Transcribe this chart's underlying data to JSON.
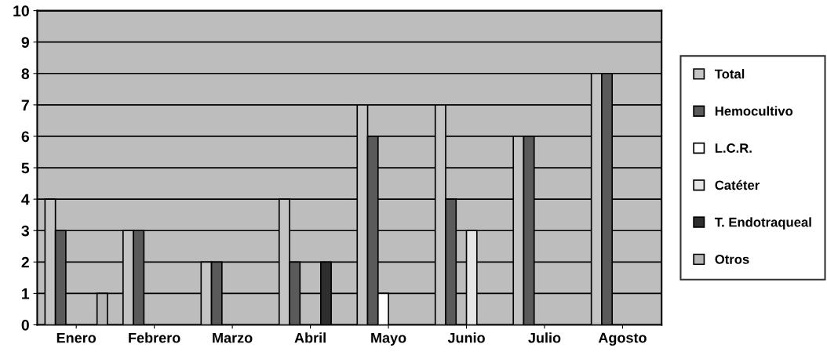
{
  "chart_data": {
    "type": "bar",
    "categories": [
      "Enero",
      "Febrero",
      "Marzo",
      "Abril",
      "Mayo",
      "Junio",
      "Julio",
      "Agosto"
    ],
    "series": [
      {
        "name": "Total",
        "color": "#c4c4c4",
        "values": [
          4,
          3,
          2,
          4,
          7,
          7,
          6,
          8
        ]
      },
      {
        "name": "Hemocultivo",
        "color": "#5a5a5a",
        "values": [
          3,
          3,
          2,
          2,
          6,
          4,
          6,
          8
        ]
      },
      {
        "name": "L.C.R.",
        "color": "#ffffff",
        "values": [
          0,
          0,
          0,
          0,
          1,
          0,
          0,
          0
        ]
      },
      {
        "name": "Catéter",
        "color": "#e6e6e6",
        "values": [
          0,
          0,
          0,
          0,
          0,
          3,
          0,
          0
        ]
      },
      {
        "name": "T. Endotraqueal",
        "color": "#2e2e2e",
        "values": [
          0,
          0,
          0,
          2,
          0,
          0,
          0,
          0
        ]
      },
      {
        "name": "Otros",
        "color": "#b4b4b4",
        "values": [
          1,
          0,
          0,
          0,
          0,
          0,
          0,
          0
        ]
      }
    ],
    "ylim": [
      0,
      10
    ],
    "yticks": [
      0,
      1,
      2,
      3,
      4,
      5,
      6,
      7,
      8,
      9,
      10
    ],
    "grid": "y",
    "legend": "right"
  }
}
